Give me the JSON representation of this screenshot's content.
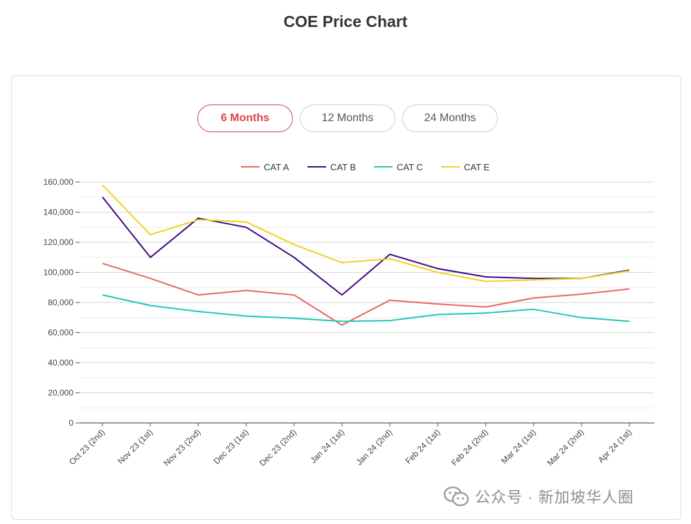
{
  "page": {
    "title": "COE Price Chart"
  },
  "tabs": [
    {
      "label": "6 Months",
      "active": true
    },
    {
      "label": "12 Months",
      "active": false
    },
    {
      "label": "24 Months",
      "active": false
    }
  ],
  "chart_data": {
    "type": "line",
    "title": "",
    "xlabel": "",
    "ylabel": "",
    "categories": [
      "Oct 23 (2nd)",
      "Nov 23 (1st)",
      "Nov 23 (2nd)",
      "Dec 23 (1st)",
      "Dec 23 (2nd)",
      "Jan 24 (1st)",
      "Jan 24 (2nd)",
      "Feb 24 (1st)",
      "Feb 24 (2nd)",
      "Mar 24 (1st)",
      "Mar 24 (2nd)",
      "Apr 24 (1st)"
    ],
    "ylim": [
      0,
      160000
    ],
    "yticks": [
      0,
      20000,
      40000,
      60000,
      80000,
      100000,
      120000,
      140000,
      160000
    ],
    "ytick_labels": [
      "0",
      "20,000",
      "40,000",
      "60,000",
      "80,000",
      "100,000",
      "120,000",
      "140,000",
      "160,000"
    ],
    "grid": true,
    "legend_position": "top",
    "series": [
      {
        "name": "CAT A",
        "color": "#e8675f",
        "values": [
          106000,
          96000,
          85000,
          88000,
          85000,
          65000,
          81500,
          79000,
          77000,
          83000,
          85500,
          89000
        ]
      },
      {
        "name": "CAT B",
        "color": "#3d0a82",
        "values": [
          150000,
          110000,
          136000,
          130000,
          110000,
          85000,
          112000,
          102500,
          97000,
          96000,
          96000,
          101500
        ]
      },
      {
        "name": "CAT C",
        "color": "#1fc7b8",
        "values": [
          85000,
          78000,
          74000,
          71000,
          69500,
          67500,
          68000,
          72000,
          73000,
          75500,
          70000,
          67500
        ]
      },
      {
        "name": "CAT E",
        "color": "#f2d01c",
        "values": [
          158000,
          125000,
          135000,
          133500,
          118500,
          106500,
          109000,
          100000,
          94000,
          95000,
          96000,
          101000
        ]
      }
    ]
  },
  "watermark": {
    "text": "公众号 · 新加坡华人圈",
    "icon": "wechat-icon"
  }
}
